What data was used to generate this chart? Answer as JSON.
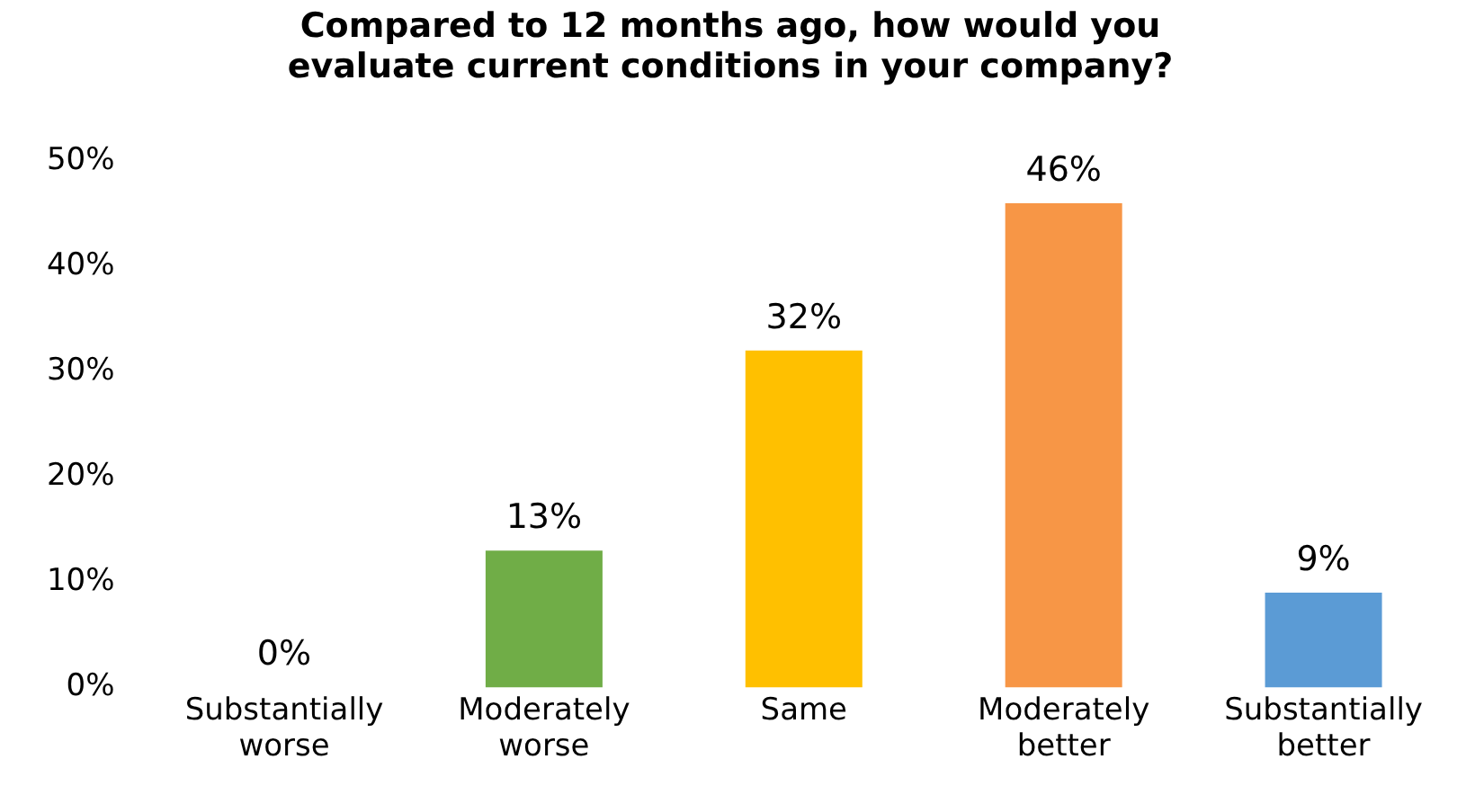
{
  "chart_data": {
    "type": "bar",
    "title": "Compared to 12 months ago, how would you evaluate current conditions in your company?",
    "categories": [
      "Substantially worse",
      "Moderately worse",
      "Same",
      "Moderately better",
      "Substantially better"
    ],
    "values": [
      0,
      13,
      32,
      46,
      9
    ],
    "colors": [
      "#7f7f7f",
      "#70ad47",
      "#ffc000",
      "#f79646",
      "#5b9bd5"
    ],
    "value_labels": [
      "0%",
      "13%",
      "32%",
      "46%",
      "9%"
    ],
    "ylim": [
      0,
      50
    ],
    "yticks": [
      {
        "value": 0,
        "label": "0%"
      },
      {
        "value": 10,
        "label": "10%"
      },
      {
        "value": 20,
        "label": "20%"
      },
      {
        "value": 30,
        "label": "30%"
      },
      {
        "value": 40,
        "label": "40%"
      },
      {
        "value": 50,
        "label": "50%"
      }
    ],
    "grid": false,
    "legend": false
  }
}
